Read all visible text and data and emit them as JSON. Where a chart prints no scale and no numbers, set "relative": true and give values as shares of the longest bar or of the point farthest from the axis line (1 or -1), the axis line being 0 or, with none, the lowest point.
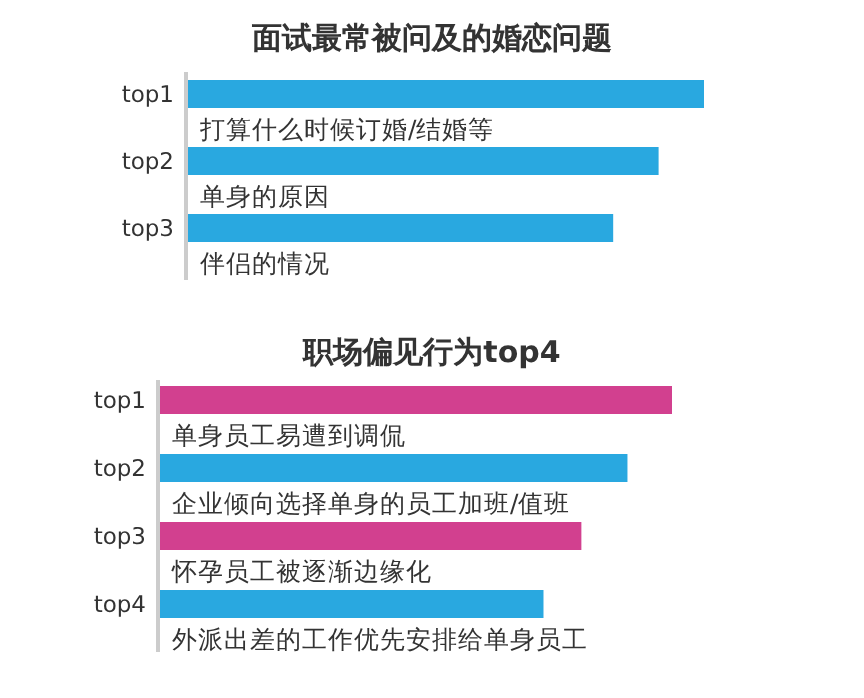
{
  "chart_data": [
    {
      "type": "bar",
      "title": "面试最常被问及的婚恋问题",
      "orientation": "horizontal",
      "relative": true,
      "categories": [
        "top1",
        "top2",
        "top3"
      ],
      "values": [
        1,
        0.912,
        0.824
      ],
      "colors": [
        "#29a8e0",
        "#29a8e0",
        "#29a8e0"
      ],
      "annotations": [
        "打算什么时候订婚/结婚等",
        "单身的原因",
        "伴侣的情况"
      ]
    },
    {
      "type": "bar",
      "title": "职场偏见行为top4",
      "orientation": "horizontal",
      "relative": true,
      "categories": [
        "top1",
        "top2",
        "top3",
        "top4"
      ],
      "values": [
        1,
        0.913,
        0.823,
        0.749
      ],
      "colors": [
        "#d2408f",
        "#29a8e0",
        "#d2408f",
        "#29a8e0"
      ],
      "annotations": [
        "单身员工易遭到调侃",
        "企业倾向选择单身的员工加班/值班",
        "怀孕员工被逐渐边缘化",
        "外派出差的工作优先安排给单身员工"
      ]
    }
  ]
}
